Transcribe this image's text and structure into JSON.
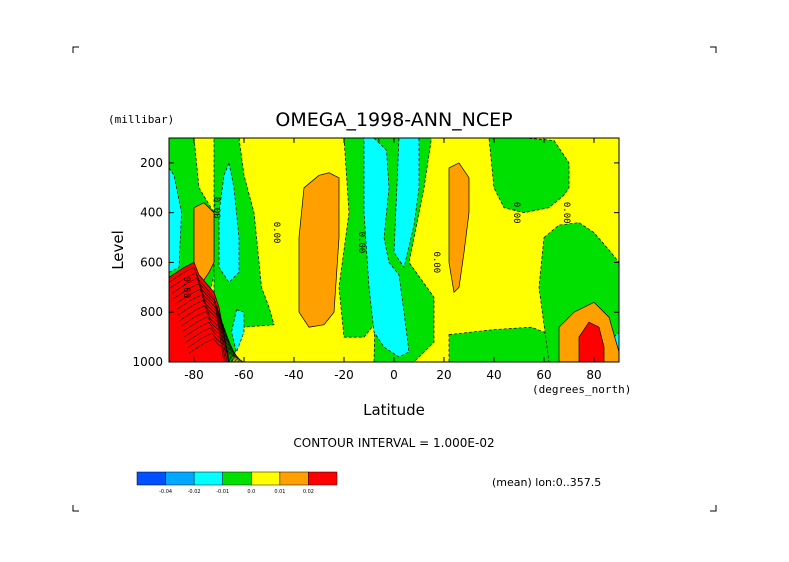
{
  "chart_data": {
    "type": "heatmap",
    "title": "OMEGA_1998-ANN_NCEP",
    "xlabel": "Latitude",
    "ylabel": "Level",
    "x_units": "(degrees_north)",
    "y_units": "(millibar)",
    "xlim": [
      -90,
      90
    ],
    "ylim": [
      1000,
      100
    ],
    "x_ticks": [
      -80,
      -60,
      -40,
      -20,
      0,
      20,
      40,
      60,
      80
    ],
    "y_ticks": [
      200,
      400,
      600,
      800,
      1000
    ],
    "contour_interval_text": "CONTOUR INTERVAL = 1.000E-02",
    "mean_text": "(mean) lon:0..357.5",
    "contour_labels": [
      "0.00",
      "0.00",
      "0.00",
      "0.00",
      "0.00",
      "0.00",
      "0.00"
    ],
    "colorbar": {
      "levels": [
        "-0.04",
        "-0.02",
        "-0.01",
        "0.0",
        "0.01",
        "0.02"
      ],
      "colors": [
        "#0050ff",
        "#00a8ff",
        "#00ffff",
        "#00e000",
        "#ffff00",
        "#ffa000",
        "#ff0000"
      ]
    },
    "regions": [
      {
        "class": "0.0..0.01",
        "polygon": [
          [
            -90,
            100
          ],
          [
            90,
            100
          ],
          [
            90,
            1000
          ],
          [
            -90,
            1000
          ]
        ]
      },
      {
        "class": "-0.01..0.0",
        "polygon": [
          [
            -90,
            100
          ],
          [
            -80,
            100
          ],
          [
            -78,
            300
          ],
          [
            -72,
            400
          ],
          [
            -72,
            650
          ],
          [
            -76,
            820
          ],
          [
            -90,
            820
          ]
        ]
      },
      {
        "class": "-0.01..0.0",
        "polygon": [
          [
            -72,
            100
          ],
          [
            -62,
            100
          ],
          [
            -60,
            250
          ],
          [
            -56,
            400
          ],
          [
            -53,
            700
          ],
          [
            -50,
            780
          ],
          [
            -48,
            850
          ],
          [
            -60,
            860
          ],
          [
            -65,
            1000
          ],
          [
            -72,
            1000
          ]
        ]
      },
      {
        "class": "-0.01..0.0",
        "polygon": [
          [
            -20,
            100
          ],
          [
            -6,
            100
          ],
          [
            -8,
            850
          ],
          [
            -12,
            900
          ],
          [
            -20,
            900
          ],
          [
            -22,
            700
          ],
          [
            -18,
            400
          ]
        ]
      },
      {
        "class": "-0.01..0.0",
        "polygon": [
          [
            -6,
            100
          ],
          [
            15,
            100
          ],
          [
            12,
            300
          ],
          [
            6,
            600
          ],
          [
            16,
            740
          ],
          [
            16,
            920
          ],
          [
            8,
            1000
          ],
          [
            -8,
            1000
          ]
        ]
      },
      {
        "class": "-0.01..0.0",
        "polygon": [
          [
            22,
            890
          ],
          [
            40,
            870
          ],
          [
            55,
            860
          ],
          [
            60,
            880
          ],
          [
            66,
            1000
          ],
          [
            22,
            1000
          ]
        ]
      },
      {
        "class": "-0.01..0.0",
        "polygon": [
          [
            38,
            100
          ],
          [
            52,
            100
          ],
          [
            64,
            110
          ],
          [
            70,
            200
          ],
          [
            70,
            300
          ],
          [
            68,
            330
          ],
          [
            62,
            380
          ],
          [
            52,
            400
          ],
          [
            44,
            380
          ],
          [
            40,
            300
          ]
        ]
      },
      {
        "class": "-0.01..0.0",
        "polygon": [
          [
            60,
            500
          ],
          [
            66,
            450
          ],
          [
            74,
            440
          ],
          [
            80,
            480
          ],
          [
            86,
            550
          ],
          [
            90,
            600
          ],
          [
            90,
            1000
          ],
          [
            62,
            1000
          ],
          [
            58,
            700
          ]
        ]
      },
      {
        "class": "-0.02..-0.01",
        "polygon": [
          [
            -90,
            220
          ],
          [
            -88,
            250
          ],
          [
            -85,
            400
          ],
          [
            -86,
            620
          ],
          [
            -90,
            640
          ]
        ]
      },
      {
        "class": "-0.02..-0.01",
        "polygon": [
          [
            -66,
            200
          ],
          [
            -64,
            300
          ],
          [
            -62,
            500
          ],
          [
            -62,
            640
          ],
          [
            -66,
            680
          ],
          [
            -70,
            620
          ],
          [
            -70,
            400
          ],
          [
            -68,
            250
          ]
        ]
      },
      {
        "class": "-0.02..-0.01",
        "polygon": [
          [
            -63,
            790
          ],
          [
            -60,
            800
          ],
          [
            -60,
            880
          ],
          [
            -63,
            960
          ],
          [
            -65,
            880
          ]
        ]
      },
      {
        "class": "-0.02..-0.01",
        "polygon": [
          [
            -12,
            100
          ],
          [
            -8,
            100
          ],
          [
            -3,
            150
          ],
          [
            -2,
            300
          ],
          [
            -4,
            500
          ],
          [
            -2,
            600
          ],
          [
            2,
            650
          ],
          [
            4,
            800
          ],
          [
            6,
            960
          ],
          [
            2,
            980
          ],
          [
            -4,
            940
          ],
          [
            -8,
            880
          ],
          [
            -10,
            700
          ],
          [
            -12,
            400
          ]
        ]
      },
      {
        "class": "-0.02..-0.01",
        "polygon": [
          [
            2,
            100
          ],
          [
            10,
            100
          ],
          [
            10,
            300
          ],
          [
            8,
            450
          ],
          [
            4,
            620
          ],
          [
            0,
            560
          ]
        ]
      },
      {
        "class": "-0.02..-0.01",
        "polygon": [
          [
            88,
            900
          ],
          [
            90,
            880
          ],
          [
            90,
            1000
          ],
          [
            88,
            1000
          ]
        ]
      },
      {
        "class": "0.01..0.02",
        "polygon": [
          [
            -80,
            380
          ],
          [
            -76,
            360
          ],
          [
            -72,
            400
          ],
          [
            -72,
            600
          ],
          [
            -74,
            640
          ],
          [
            -78,
            700
          ],
          [
            -80,
            600
          ]
        ]
      },
      {
        "class": "0.01..0.02",
        "polygon": [
          [
            -36,
            300
          ],
          [
            -30,
            250
          ],
          [
            -26,
            240
          ],
          [
            -22,
            260
          ],
          [
            -22,
            500
          ],
          [
            -24,
            800
          ],
          [
            -28,
            850
          ],
          [
            -34,
            860
          ],
          [
            -38,
            800
          ],
          [
            -38,
            500
          ]
        ]
      },
      {
        "class": "0.01..0.02",
        "polygon": [
          [
            22,
            220
          ],
          [
            26,
            200
          ],
          [
            30,
            260
          ],
          [
            30,
            400
          ],
          [
            28,
            560
          ],
          [
            26,
            700
          ],
          [
            24,
            720
          ],
          [
            22,
            600
          ],
          [
            22,
            400
          ]
        ]
      },
      {
        "class": "0.01..0.02",
        "polygon": [
          [
            66,
            860
          ],
          [
            72,
            800
          ],
          [
            80,
            760
          ],
          [
            86,
            820
          ],
          [
            90,
            960
          ],
          [
            90,
            1000
          ],
          [
            66,
            1000
          ]
        ]
      },
      {
        "class": "0.02..inf",
        "polygon": [
          [
            -90,
            660
          ],
          [
            -84,
            620
          ],
          [
            -80,
            600
          ],
          [
            -78,
            650
          ],
          [
            -72,
            720
          ],
          [
            -70,
            780
          ],
          [
            -66,
            1000
          ],
          [
            -90,
            1000
          ]
        ]
      },
      {
        "class": "0.02..inf",
        "polygon": [
          [
            74,
            900
          ],
          [
            78,
            840
          ],
          [
            82,
            860
          ],
          [
            84,
            940
          ],
          [
            84,
            1000
          ],
          [
            74,
            1000
          ]
        ]
      }
    ]
  }
}
